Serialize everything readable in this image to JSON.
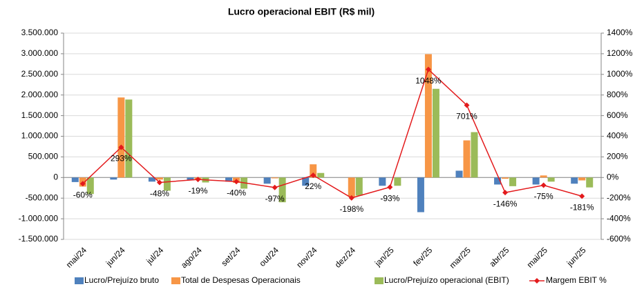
{
  "chart_data": {
    "type": "bar",
    "title": "Lucro operacional EBIT (R$ mil)",
    "categories": [
      "mai/24",
      "jun/24",
      "jul/24",
      "ago/24",
      "set/24",
      "out/24",
      "nov/24",
      "dez/24",
      "jan/25",
      "fev/25",
      "mar/25",
      "abr/25",
      "mai/25",
      "jun/25"
    ],
    "series": [
      {
        "name": "Lucro/Prejuízo bruto",
        "color": "#4f81bd",
        "values": [
          -110000,
          -50000,
          -100000,
          -70000,
          -100000,
          -150000,
          -200000,
          0,
          -200000,
          -840000,
          165000,
          -170000,
          -170000,
          -150000
        ]
      },
      {
        "name": "Total de Despesas Operacionais",
        "color": "#f79646",
        "values": [
          -220000,
          1940000,
          -50000,
          -60000,
          -130000,
          -20000,
          320000,
          -470000,
          0,
          2990000,
          900000,
          -30000,
          50000,
          -70000
        ]
      },
      {
        "name": "Lucro/Prejuízo operacional (EBIT)",
        "color": "#9bbb59",
        "values": [
          -400000,
          1890000,
          -320000,
          -120000,
          -270000,
          -600000,
          110000,
          -440000,
          -200000,
          2150000,
          1100000,
          -210000,
          -100000,
          -240000
        ]
      },
      {
        "name": "Margem EBIT %",
        "color": "#e31a1c",
        "type": "line",
        "axis": "y2",
        "values": [
          -60,
          293,
          -48,
          -19,
          -40,
          -97,
          22,
          -198,
          -93,
          1048,
          701,
          -146,
          -75,
          -181
        ],
        "value_labels": [
          "-60%",
          "293%",
          "-48%",
          "-19%",
          "-40%",
          "-97%",
          "22%",
          "-198%",
          "-93%",
          "1048%",
          "701%",
          "-146%",
          "-75%",
          "-181%"
        ]
      }
    ],
    "ylim": [
      -1500000,
      3500000
    ],
    "yticks": [
      {
        "value": -1500000,
        "label": "-1.500.000"
      },
      {
        "value": -1000000,
        "label": "-1.000.000"
      },
      {
        "value": -500000,
        "label": "-500.000"
      },
      0,
      {
        "value": 500000,
        "label": "500.000"
      },
      {
        "value": 1000000,
        "label": "1.000.000"
      },
      {
        "value": 1500000,
        "label": "1.500.000"
      },
      {
        "value": 2000000,
        "label": "2.000.000"
      },
      {
        "value": 2500000,
        "label": "2.500.000"
      },
      {
        "value": 3000000,
        "label": "3.000.000"
      },
      {
        "value": 3500000,
        "label": "3.500.000"
      }
    ],
    "y2lim": [
      -600,
      1400
    ],
    "y2ticks": [
      {
        "value": -600,
        "label": "-600%"
      },
      {
        "value": -400,
        "label": "-400%"
      },
      {
        "value": -200,
        "label": "-200%"
      },
      {
        "value": 0,
        "label": "0%"
      },
      {
        "value": 200,
        "label": "200%"
      },
      {
        "value": 400,
        "label": "400%"
      },
      {
        "value": 600,
        "label": "600%"
      },
      {
        "value": 800,
        "label": "800%"
      },
      {
        "value": 1000,
        "label": "1000%"
      },
      {
        "value": 1200,
        "label": "1200%"
      },
      {
        "value": 1400,
        "label": "1400%"
      }
    ],
    "grid": true,
    "legend": "bottom"
  }
}
